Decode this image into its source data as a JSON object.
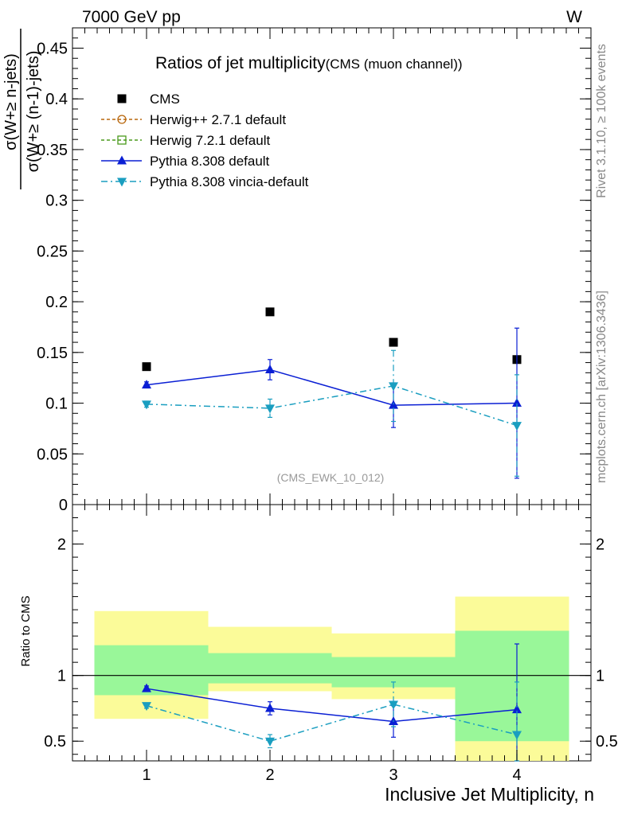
{
  "header": {
    "left": "7000 GeV pp",
    "right": "W"
  },
  "side_text": {
    "rivet": "Rivet 3.1.10, ≥ 100k events",
    "mcplots": "mcplots.cern.ch [arXiv:1306.3436]"
  },
  "colors": {
    "cms": "#000000",
    "herwigpp": "#b8660b",
    "herwig7": "#4a9a1c",
    "pythia": "#0a1fd4",
    "vincia": "#1a9ec0",
    "band_inner": "#99f799",
    "band_outer": "#fbfb99"
  },
  "chart_data": [
    {
      "type": "scatter",
      "title": "Ratios of jet multiplicity",
      "subtitle": "(CMS (muon channel))",
      "ylabel": "σ(W+≥ n-jets) / σ(W+≥ (n-1)-jets)",
      "xlabel": "",
      "watermark": "(CMS_EWK_10_012)",
      "x": [
        1,
        2,
        3,
        4
      ],
      "xlim": [
        0.4,
        4.6
      ],
      "ylim": [
        0,
        0.47
      ],
      "yticks": [
        "0",
        "0.05",
        "0.1",
        "0.15",
        "0.2",
        "0.25",
        "0.3",
        "0.35",
        "0.4",
        "0.45"
      ],
      "legend_position": "top-left",
      "series": [
        {
          "name": "CMS",
          "style": "marker",
          "values": [
            0.136,
            0.19,
            0.16,
            0.143
          ]
        },
        {
          "name": "Herwig++ 2.7.1 default",
          "style": "dashed-circle",
          "values": []
        },
        {
          "name": "Herwig 7.2.1 default",
          "style": "dashed-square",
          "values": []
        },
        {
          "name": "Pythia 8.308 default",
          "style": "solid-triangle-up",
          "values": [
            0.118,
            0.133,
            0.098,
            0.1
          ],
          "errors": [
            0.003,
            0.01,
            0.022,
            0.074
          ]
        },
        {
          "name": "Pythia 8.308 vincia-default",
          "style": "dashdot-triangle-down",
          "values": [
            0.099,
            0.095,
            0.117,
            0.078
          ],
          "errors": [
            0.003,
            0.009,
            0.035,
            0.05
          ]
        }
      ]
    },
    {
      "type": "scatter",
      "title": "",
      "ylabel": "Ratio to CMS",
      "xlabel": "Inclusive Jet Multiplicity, n",
      "x": [
        1,
        2,
        3,
        4
      ],
      "xlim": [
        0.4,
        4.6
      ],
      "ylim": [
        0.35,
        2.3
      ],
      "yticks": [
        "0.5",
        "1",
        "2"
      ],
      "xticks": [
        "1",
        "2",
        "3",
        "4"
      ],
      "bands": {
        "bins": [
          [
            0.5,
            1.5
          ],
          [
            1.5,
            2.5
          ],
          [
            2.5,
            3.5
          ],
          [
            3.5,
            4.5
          ]
        ],
        "inner": [
          [
            0.85,
            1.23
          ],
          [
            0.94,
            1.17
          ],
          [
            0.91,
            1.14
          ],
          [
            0.5,
            1.34
          ]
        ],
        "outer": [
          [
            0.67,
            1.49
          ],
          [
            0.88,
            1.37
          ],
          [
            0.82,
            1.32
          ],
          [
            0.35,
            1.6
          ]
        ]
      },
      "series": [
        {
          "name": "Pythia 8.308 default",
          "style": "solid-triangle-up",
          "values": [
            0.9,
            0.75,
            0.65,
            0.74
          ],
          "errors": [
            0.02,
            0.05,
            0.12,
            0.5
          ]
        },
        {
          "name": "Pythia 8.308 vincia-default",
          "style": "dashdot-triangle-down",
          "values": [
            0.77,
            0.5,
            0.78,
            0.55
          ],
          "errors": [
            0.02,
            0.05,
            0.17,
            0.4
          ]
        }
      ]
    }
  ]
}
